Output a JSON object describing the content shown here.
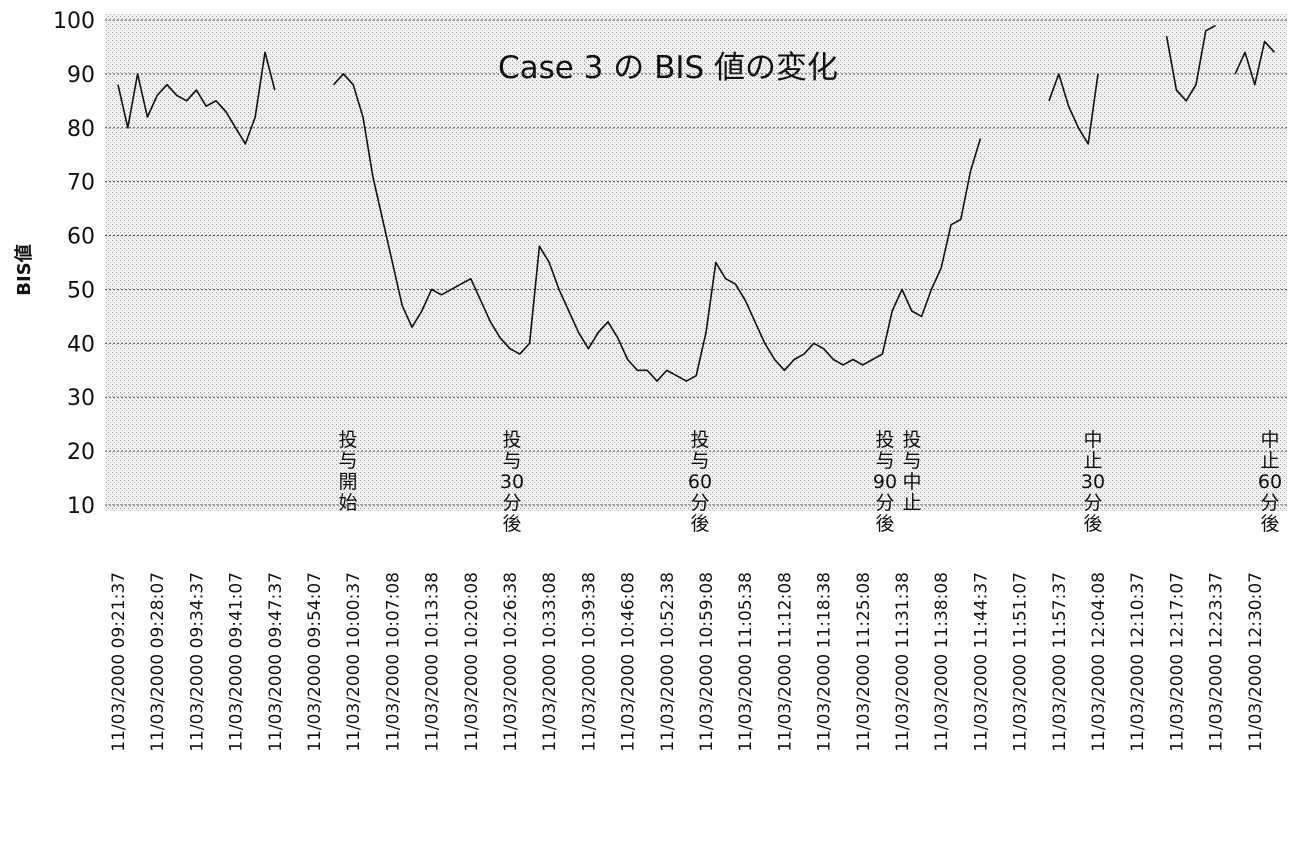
{
  "chart_data": {
    "type": "line",
    "title": "Case 3 の BIS 値の変化",
    "y_label": "BIS値",
    "categories": [
      "11/03/2000 09:21:37",
      null,
      null,
      null,
      "11/03/2000 09:28:07",
      null,
      null,
      null,
      "11/03/2000 09:34:37",
      null,
      null,
      null,
      "11/03/2000 09:41:07",
      null,
      null,
      null,
      "11/03/2000 09:47:37",
      null,
      null,
      null,
      "11/03/2000 09:54:07",
      null,
      null,
      null,
      "11/03/2000 10:00:37",
      null,
      null,
      null,
      "11/03/2000 10:07:08",
      null,
      null,
      null,
      "11/03/2000 10:13:38",
      null,
      null,
      null,
      "11/03/2000 10:20:08",
      null,
      null,
      null,
      "11/03/2000 10:26:38",
      null,
      null,
      null,
      "11/03/2000 10:33:08",
      null,
      null,
      null,
      "11/03/2000 10:39:38",
      null,
      null,
      null,
      "11/03/2000 10:46:08",
      null,
      null,
      null,
      "11/03/2000 10:52:38",
      null,
      null,
      null,
      "11/03/2000 10:59:08",
      null,
      null,
      null,
      "11/03/2000 11:05:38",
      null,
      null,
      null,
      "11/03/2000 11:12:08",
      null,
      null,
      null,
      "11/03/2000 11:18:38",
      null,
      null,
      null,
      "11/03/2000 11:25:08",
      null,
      null,
      null,
      "11/03/2000 11:31:38",
      null,
      null,
      null,
      "11/03/2000 11:38:08",
      null,
      null,
      null,
      "11/03/2000 11:44:37",
      null,
      null,
      null,
      "11/03/2000 11:51:07",
      null,
      null,
      null,
      "11/03/2000 11:57:37",
      null,
      null,
      null,
      "11/03/2000 12:04:08",
      null,
      null,
      null,
      "11/03/2000 12:10:37",
      null,
      null,
      null,
      "11/03/2000 12:17:07",
      null,
      null,
      null,
      "11/03/2000 12:23:37",
      null,
      null,
      null,
      "11/03/2000 12:30:07",
      null,
      null
    ],
    "series": [
      {
        "name": "BIS値",
        "color": "#111111",
        "values": [
          88,
          80,
          90,
          82,
          86,
          88,
          86,
          85,
          87,
          84,
          85,
          83,
          80,
          77,
          82,
          94,
          87,
          null,
          null,
          null,
          null,
          null,
          88,
          90,
          88,
          82,
          71,
          63,
          55,
          47,
          43,
          46,
          50,
          49,
          50,
          51,
          52,
          48,
          44,
          41,
          39,
          38,
          40,
          58,
          55,
          50,
          46,
          42,
          39,
          42,
          44,
          41,
          37,
          35,
          35,
          33,
          35,
          34,
          33,
          34,
          42,
          55,
          52,
          51,
          48,
          44,
          40,
          37,
          35,
          37,
          38,
          40,
          39,
          37,
          36,
          37,
          36,
          37,
          38,
          46,
          50,
          46,
          45,
          50,
          54,
          62,
          63,
          72,
          78,
          null,
          null,
          null,
          null,
          null,
          null,
          85,
          90,
          84,
          80,
          77,
          90,
          null,
          null,
          null,
          null,
          null,
          null,
          97,
          87,
          85,
          88,
          98,
          99,
          null,
          90,
          94,
          88,
          96,
          94
        ]
      }
    ],
    "ylim": [
      10,
      100
    ],
    "yticks": [
      10,
      20,
      30,
      40,
      50,
      60,
      70,
      80,
      90,
      100
    ],
    "grid": true,
    "annotations": [
      "投与開始",
      "投与30分後",
      "投与60分後",
      "投与90分後",
      "投与中止",
      "中止30分後",
      "中止60分後"
    ]
  }
}
